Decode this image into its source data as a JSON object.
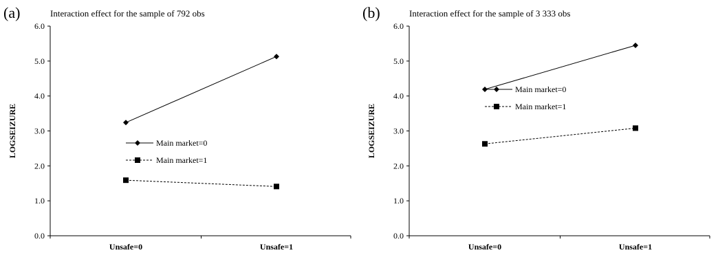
{
  "chart_data": [
    {
      "panel_label": "(a)",
      "type": "line",
      "title": "Interaction effect for the sample of 792 obs",
      "xlabel": "",
      "ylabel": "LOGSEIZURE",
      "categories": [
        "Unsafe=0",
        "Unsafe=1"
      ],
      "ylim": [
        0,
        6
      ],
      "yticks": [
        "0.0",
        "1.0",
        "2.0",
        "3.0",
        "4.0",
        "5.0",
        "6.0"
      ],
      "grid": false,
      "legend_position": "center",
      "series": [
        {
          "name": "Main market=0",
          "values": [
            3.24,
            5.13
          ],
          "marker": "diamond",
          "line_style": "solid"
        },
        {
          "name": "Main market=1",
          "values": [
            1.59,
            1.41
          ],
          "marker": "square",
          "line_style": "dashed"
        }
      ]
    },
    {
      "panel_label": "(b)",
      "type": "line",
      "title": "Interaction effect for the sample of 3 333 obs",
      "xlabel": "",
      "ylabel": "LOGSEIZURE",
      "categories": [
        "Unsafe=0",
        "Unsafe=1"
      ],
      "ylim": [
        0,
        6
      ],
      "yticks": [
        "0.0",
        "1.0",
        "2.0",
        "3.0",
        "4.0",
        "5.0",
        "6.0"
      ],
      "grid": false,
      "legend_position": "upper-left",
      "series": [
        {
          "name": "Main market=0",
          "values": [
            4.19,
            5.45
          ],
          "marker": "diamond",
          "line_style": "solid"
        },
        {
          "name": "Main market=1",
          "values": [
            2.63,
            3.08
          ],
          "marker": "square",
          "line_style": "dashed"
        }
      ]
    }
  ]
}
